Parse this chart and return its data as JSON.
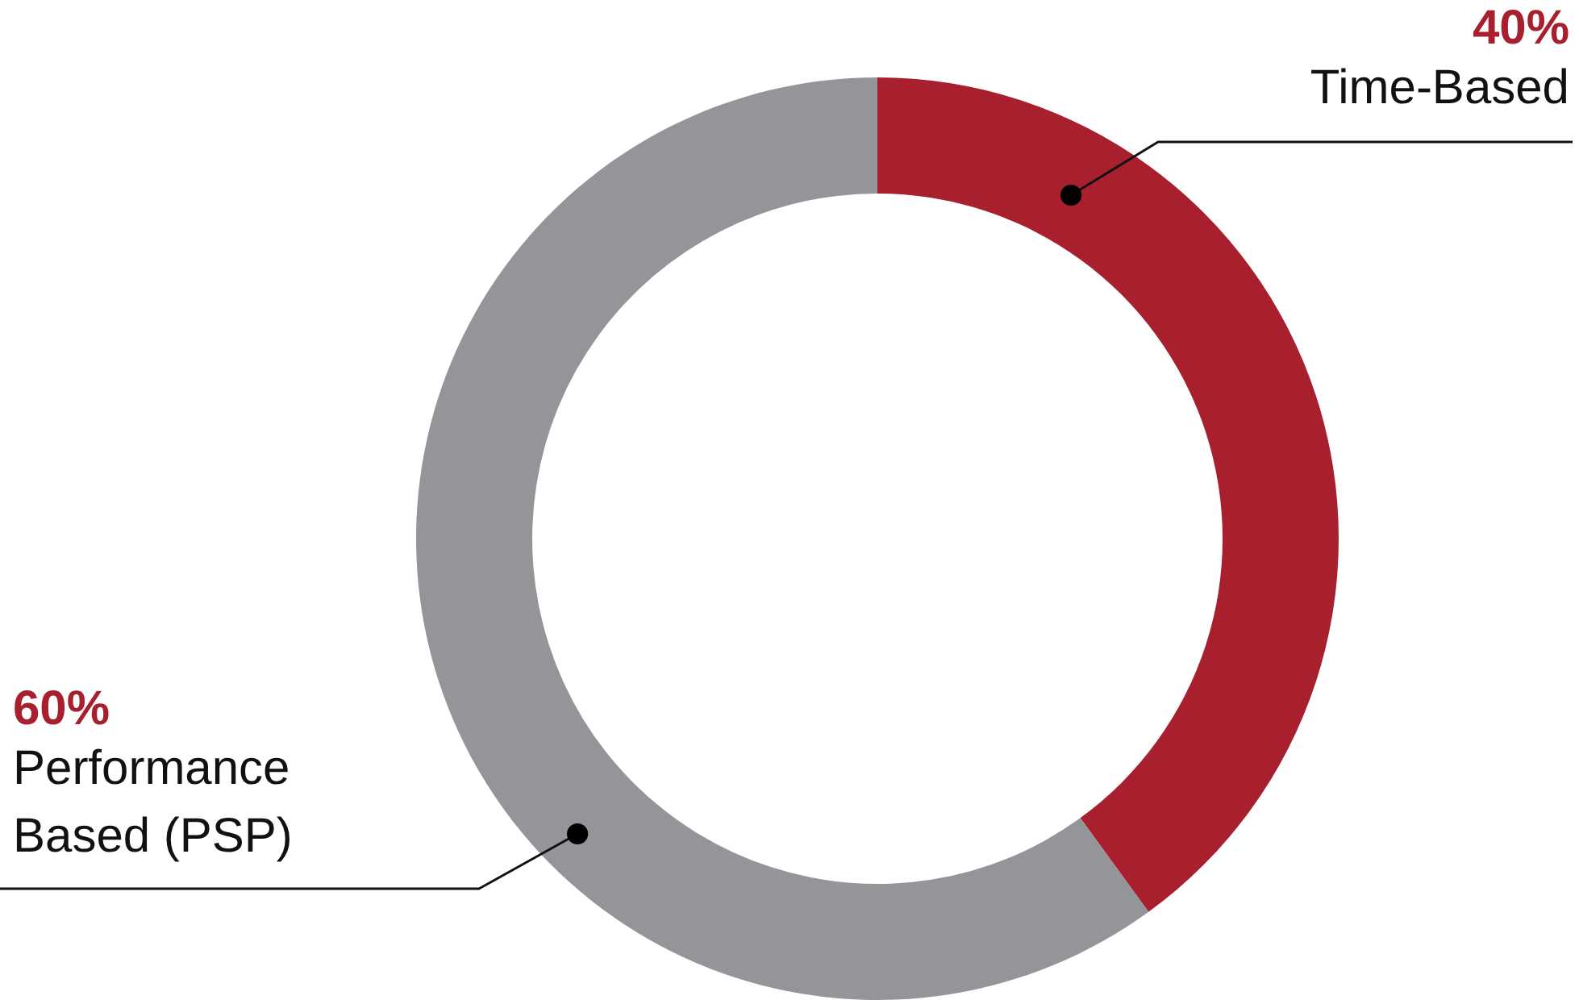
{
  "chart_data": {
    "type": "donut",
    "categories": [
      "Time-Based",
      "Performance Based (PSP)"
    ],
    "values": [
      40,
      60
    ],
    "colors": [
      "#a81f2e",
      "#939598"
    ],
    "value_labels": [
      "40%",
      "60%"
    ]
  }
}
